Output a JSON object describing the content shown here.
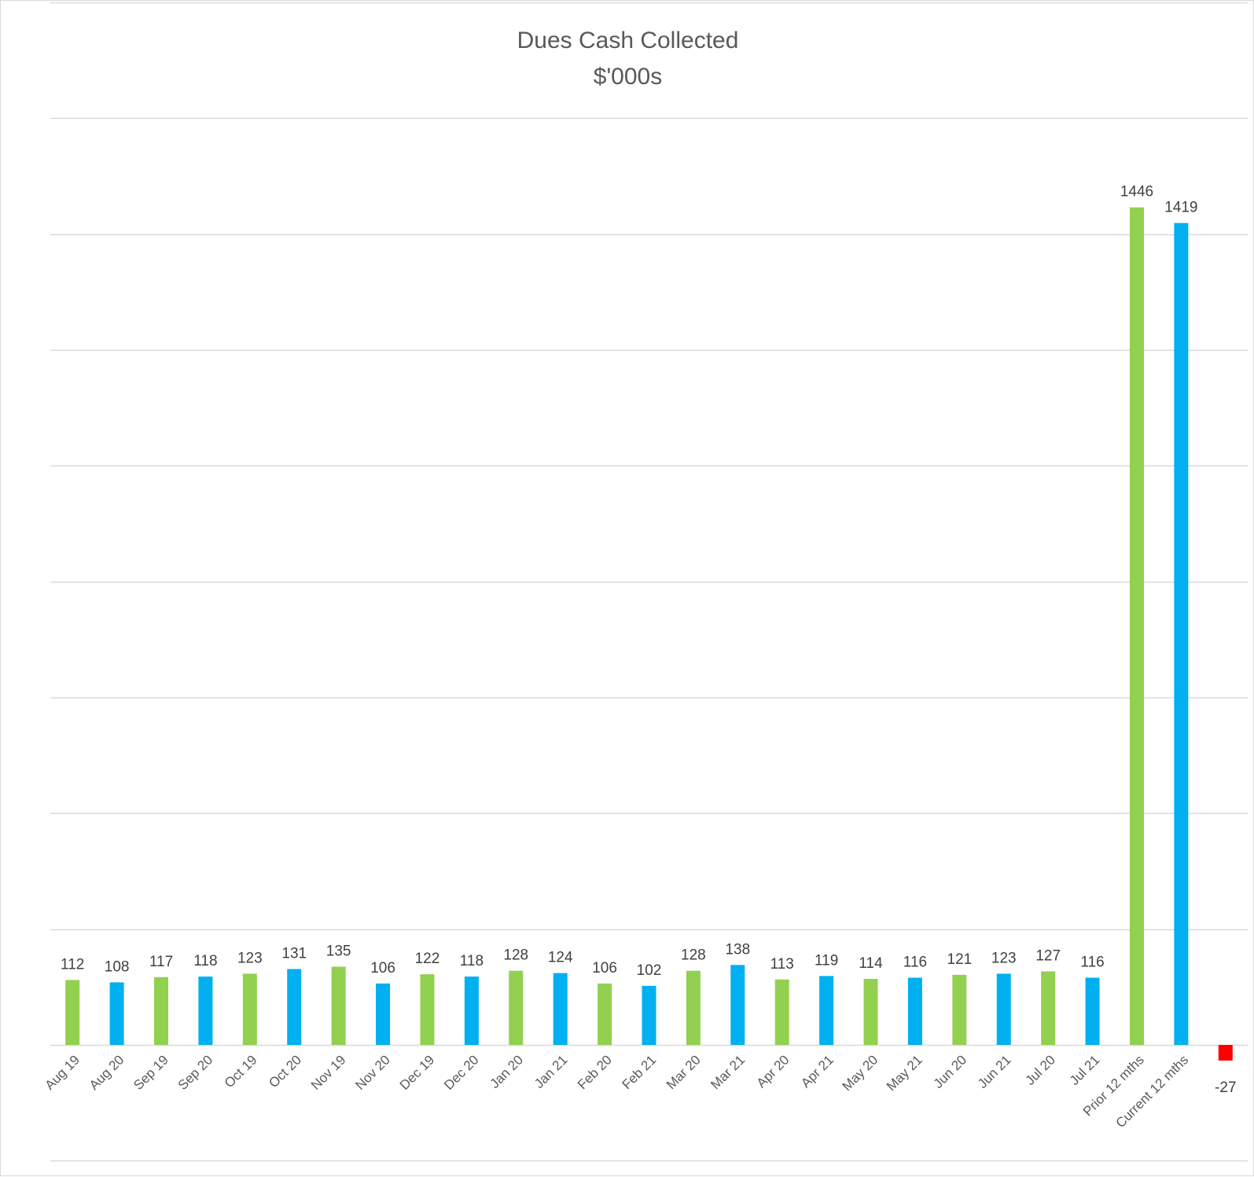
{
  "chart_data": {
    "type": "bar",
    "title": "Dues Cash Collected",
    "subtitle": "$'000s",
    "xlabel": "",
    "ylabel": "",
    "ylim": [
      -200,
      1800
    ],
    "grid": true,
    "legend": "none",
    "categories": [
      "Aug 19",
      "Aug 20",
      "Sep 19",
      "Sep 20",
      "Oct 19",
      "Oct 20",
      "Nov 19",
      "Nov 20",
      "Dec 19",
      "Dec 20",
      "Jan 20",
      "Jan 21",
      "Feb 20",
      "Feb 21",
      "Mar 20",
      "Mar 21",
      "Apr 20",
      "Apr 21",
      "May 20",
      "May 21",
      "Jun 20",
      "Jun 21",
      "Jul 20",
      "Jul 21",
      "Prior 12 mths",
      "Current 12 mths",
      ""
    ],
    "values": [
      112,
      108,
      117,
      118,
      123,
      131,
      135,
      106,
      122,
      118,
      128,
      124,
      106,
      102,
      128,
      138,
      113,
      119,
      114,
      116,
      121,
      123,
      127,
      116,
      1446,
      1419,
      -27
    ],
    "colors": [
      "#92d050",
      "#00b0f0",
      "#92d050",
      "#00b0f0",
      "#92d050",
      "#00b0f0",
      "#92d050",
      "#00b0f0",
      "#92d050",
      "#00b0f0",
      "#92d050",
      "#00b0f0",
      "#92d050",
      "#00b0f0",
      "#92d050",
      "#00b0f0",
      "#92d050",
      "#00b0f0",
      "#92d050",
      "#00b0f0",
      "#92d050",
      "#00b0f0",
      "#92d050",
      "#00b0f0",
      "#92d050",
      "#00b0f0",
      "#ff0000"
    ],
    "gridline_color": "#d9d9d9"
  }
}
